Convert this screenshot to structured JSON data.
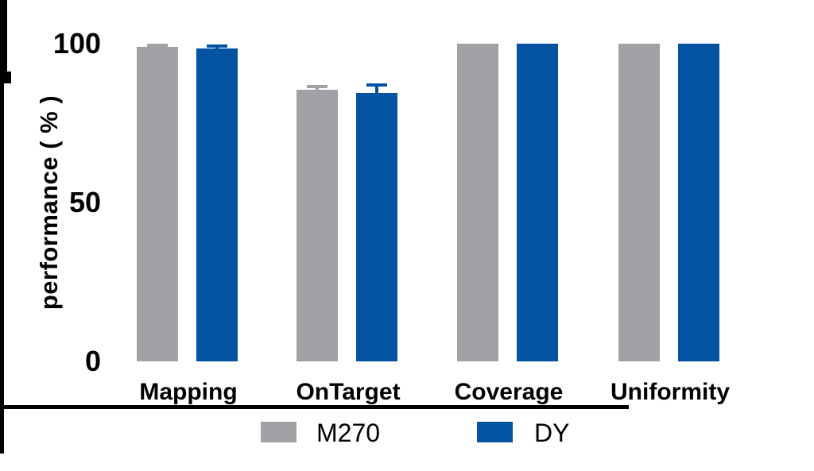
{
  "chart_data": {
    "type": "bar",
    "title": "",
    "ylabel": "performance ( % )",
    "xlabel": "",
    "categories": [
      "Mapping",
      "OnTarget",
      "Coverage",
      "Uniformity"
    ],
    "series": [
      {
        "name": "M270",
        "color": "#A1A2A6",
        "values": [
          99,
          85.5,
          100,
          100
        ],
        "errors_sd": [
          0.5,
          1.0,
          0,
          0
        ]
      },
      {
        "name": "DY",
        "color": "#0452A2",
        "values": [
          98.5,
          84.5,
          100,
          100
        ],
        "errors_sd": [
          0.8,
          2.5,
          0,
          0
        ]
      }
    ],
    "ylim": [
      0,
      100
    ],
    "yticks": [
      0,
      50,
      100
    ],
    "minor_tick_step": 5,
    "grid": "off",
    "legend_position": "bottom",
    "axis_color": "#000000",
    "background_color": "#FFFFFF"
  }
}
